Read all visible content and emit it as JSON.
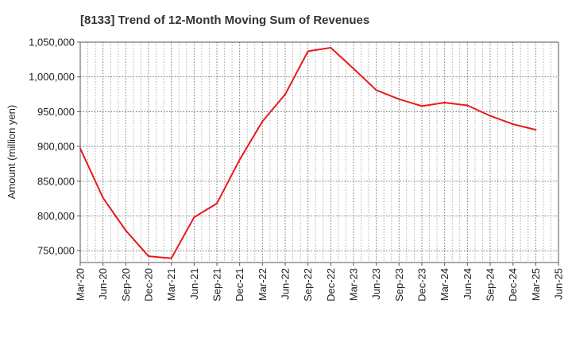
{
  "chart_data": {
    "type": "line",
    "title": "[8133]  Trend of 12-Month Moving Sum of Revenues",
    "xlabel": "",
    "ylabel": "Amount (million yen)",
    "ylim": [
      733000,
      1050000
    ],
    "yticks": [
      750000,
      800000,
      850000,
      900000,
      950000,
      1000000,
      1050000
    ],
    "ytick_labels": [
      "750,000",
      "800,000",
      "850,000",
      "900,000",
      "950,000",
      "1,000,000",
      "1,050,000"
    ],
    "xticks": [
      "Mar-20",
      "Jun-20",
      "Sep-20",
      "Dec-20",
      "Mar-21",
      "Jun-21",
      "Sep-21",
      "Dec-21",
      "Mar-22",
      "Jun-22",
      "Sep-22",
      "Dec-22",
      "Mar-23",
      "Jun-23",
      "Sep-23",
      "Dec-23",
      "Mar-24",
      "Jun-24",
      "Sep-24",
      "Dec-24",
      "Mar-25",
      "Jun-25"
    ],
    "grid": true,
    "series": [
      {
        "color": "#e8191c",
        "x": [
          "Mar-20",
          "Jun-20",
          "Sep-20",
          "Dec-20",
          "Mar-21",
          "Jun-21",
          "Sep-21",
          "Dec-21",
          "Mar-22",
          "Jun-22",
          "Sep-22",
          "Dec-22",
          "Mar-23",
          "Jun-23",
          "Sep-23",
          "Dec-23",
          "Mar-24",
          "Jun-24",
          "Sep-24",
          "Dec-24",
          "Mar-25"
        ],
        "values": [
          897000,
          826000,
          779000,
          742000,
          739000,
          798000,
          818000,
          881000,
          936000,
          975000,
          1037000,
          1042000,
          1012000,
          981000,
          968000,
          958000,
          963000,
          959000,
          944000,
          932000,
          924000
        ]
      }
    ]
  }
}
